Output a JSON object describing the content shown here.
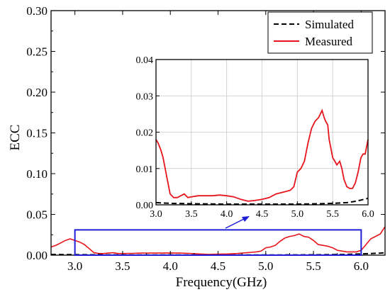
{
  "chart_data": {
    "type": "line",
    "xlabel": "Frequency(GHz)",
    "ylabel": "ECC",
    "xlim": [
      2.75,
      6.25
    ],
    "ylim": [
      0,
      0.3
    ],
    "xticks": [
      "3.0",
      "3.5",
      "4.0",
      "4.5",
      "5.0",
      "5.5",
      "6.0"
    ],
    "yticks": [
      "0.00",
      "0.05",
      "0.10",
      "0.15",
      "0.20",
      "0.25",
      "0.30"
    ],
    "legend_position": "top-right",
    "series": [
      {
        "name": "Simulated",
        "color": "#000000",
        "dash": "dashed",
        "x": [
          2.75,
          3.0,
          3.2,
          3.5,
          4.0,
          4.5,
          5.0,
          5.5,
          5.8,
          6.0,
          6.1,
          6.2,
          6.25
        ],
        "y": [
          0.0008,
          0.0006,
          0.0004,
          0.0003,
          0.0002,
          0.0002,
          0.0002,
          0.0004,
          0.0008,
          0.0015,
          0.002,
          0.0025,
          0.003
        ]
      },
      {
        "name": "Measured",
        "color": "#e8141c",
        "dash": "solid",
        "x": [
          2.75,
          2.8,
          2.85,
          2.9,
          2.95,
          3.0,
          3.05,
          3.1,
          3.15,
          3.2,
          3.25,
          3.3,
          3.35,
          3.4,
          3.45,
          3.5,
          3.6,
          3.7,
          3.8,
          3.9,
          4.0,
          4.1,
          4.2,
          4.3,
          4.4,
          4.5,
          4.6,
          4.7,
          4.8,
          4.85,
          4.9,
          4.95,
          5.0,
          5.05,
          5.1,
          5.15,
          5.2,
          5.25,
          5.3,
          5.35,
          5.4,
          5.45,
          5.5,
          5.55,
          5.6,
          5.65,
          5.7,
          5.75,
          5.8,
          5.85,
          5.9,
          5.95,
          6.0,
          6.05,
          6.1,
          6.15,
          6.2,
          6.25
        ],
        "y": [
          0.01,
          0.012,
          0.015,
          0.018,
          0.02,
          0.018,
          0.016,
          0.013,
          0.008,
          0.003,
          0.002,
          0.002,
          0.0025,
          0.003,
          0.002,
          0.002,
          0.0022,
          0.0025,
          0.0025,
          0.0025,
          0.0027,
          0.0025,
          0.0022,
          0.0015,
          0.001,
          0.0012,
          0.0015,
          0.002,
          0.003,
          0.0035,
          0.004,
          0.005,
          0.009,
          0.01,
          0.012,
          0.017,
          0.021,
          0.023,
          0.024,
          0.026,
          0.023,
          0.022,
          0.018,
          0.013,
          0.012,
          0.011,
          0.009,
          0.006,
          0.005,
          0.004,
          0.004,
          0.004,
          0.006,
          0.013,
          0.02,
          0.023,
          0.026,
          0.035
        ]
      }
    ],
    "inset": {
      "xlim": [
        3.0,
        6.0
      ],
      "ylim": [
        0,
        0.04
      ],
      "xticks": [
        "3.0",
        "3.5",
        "4.0",
        "4.5",
        "5.0",
        "5.5",
        "6.0"
      ],
      "yticks": [
        "0.00",
        "0.01",
        "0.02",
        "0.03",
        "0.04"
      ],
      "grid": true,
      "series": [
        {
          "name": "Simulated",
          "color": "#000000",
          "dash": "dashed",
          "x": [
            3.0,
            3.2,
            3.5,
            4.0,
            4.5,
            5.0,
            5.3,
            5.5,
            5.7,
            5.8,
            5.9,
            6.0
          ],
          "y": [
            0.0006,
            0.0004,
            0.0003,
            0.0002,
            0.0002,
            0.0002,
            0.0003,
            0.0004,
            0.0006,
            0.0009,
            0.0013,
            0.0018
          ]
        },
        {
          "name": "Measured",
          "color": "#e8141c",
          "dash": "solid",
          "x": [
            3.0,
            3.03,
            3.07,
            3.1,
            3.15,
            3.2,
            3.25,
            3.3,
            3.35,
            3.4,
            3.45,
            3.5,
            3.6,
            3.7,
            3.8,
            3.9,
            4.0,
            4.1,
            4.2,
            4.3,
            4.4,
            4.5,
            4.6,
            4.7,
            4.8,
            4.9,
            4.95,
            5.0,
            5.05,
            5.1,
            5.15,
            5.2,
            5.25,
            5.3,
            5.35,
            5.38,
            5.4,
            5.43,
            5.45,
            5.48,
            5.5,
            5.53,
            5.56,
            5.6,
            5.63,
            5.66,
            5.7,
            5.74,
            5.78,
            5.82,
            5.86,
            5.9,
            5.93,
            5.96,
            6.0
          ],
          "y": [
            0.018,
            0.017,
            0.015,
            0.013,
            0.008,
            0.003,
            0.002,
            0.002,
            0.0025,
            0.003,
            0.002,
            0.0022,
            0.0025,
            0.0025,
            0.0025,
            0.0027,
            0.0025,
            0.0022,
            0.0015,
            0.001,
            0.0012,
            0.0015,
            0.002,
            0.003,
            0.0035,
            0.004,
            0.005,
            0.009,
            0.01,
            0.012,
            0.017,
            0.021,
            0.023,
            0.024,
            0.026,
            0.024,
            0.023,
            0.022,
            0.018,
            0.015,
            0.013,
            0.012,
            0.011,
            0.012,
            0.01,
            0.007,
            0.005,
            0.0045,
            0.0045,
            0.006,
            0.009,
            0.013,
            0.014,
            0.014,
            0.018
          ]
        }
      ]
    },
    "zoom_box": {
      "x": [
        3.0,
        6.0
      ],
      "y": [
        0.0,
        0.031
      ],
      "color": "#1f1fd6"
    },
    "arrow": {
      "color": "#1f1fd6"
    }
  }
}
